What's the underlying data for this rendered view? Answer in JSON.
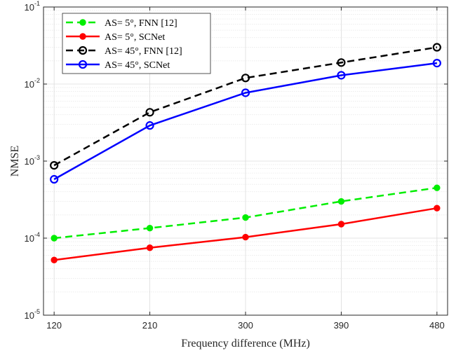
{
  "chart_data": {
    "type": "line",
    "xlabel": "Frequency difference (MHz)",
    "ylabel": "NMSE",
    "yscale": "log",
    "x": [
      120,
      210,
      300,
      390,
      480
    ],
    "x_tick_labels": [
      "120",
      "210",
      "300",
      "390",
      "480"
    ],
    "xlim": [
      110,
      490
    ],
    "ylim": [
      1e-05,
      0.1
    ],
    "y_ticks": [
      {
        "base": "10",
        "exp": "-5",
        "value": 1e-05
      },
      {
        "base": "10",
        "exp": "-4",
        "value": 0.0001
      },
      {
        "base": "10",
        "exp": "-3",
        "value": 0.001
      },
      {
        "base": "10",
        "exp": "-2",
        "value": 0.01
      },
      {
        "base": "10",
        "exp": "-1",
        "value": 0.1
      }
    ],
    "grid": true,
    "minor_grid": true,
    "legend_position": "top-left",
    "series": [
      {
        "name": "AS= 5°, FNN [12]",
        "color": "#00ee00",
        "dash": "dashed",
        "marker": "filled-circle",
        "values": [
          0.0001,
          0.000135,
          0.000185,
          0.0003,
          0.00045
        ]
      },
      {
        "name": "AS= 5°, SCNet",
        "color": "#ff0000",
        "dash": "solid",
        "marker": "filled-circle",
        "values": [
          5.2e-05,
          7.5e-05,
          0.000103,
          0.000152,
          0.000245
        ]
      },
      {
        "name": "AS= 45°, FNN [12]",
        "color": "#000000",
        "dash": "dashed",
        "marker": "open-circle",
        "values": [
          0.00088,
          0.0043,
          0.012,
          0.019,
          0.03
        ]
      },
      {
        "name": "AS= 45°, SCNet",
        "color": "#0000ff",
        "dash": "solid",
        "marker": "open-circle",
        "values": [
          0.00058,
          0.0029,
          0.0077,
          0.013,
          0.0187
        ]
      }
    ]
  }
}
